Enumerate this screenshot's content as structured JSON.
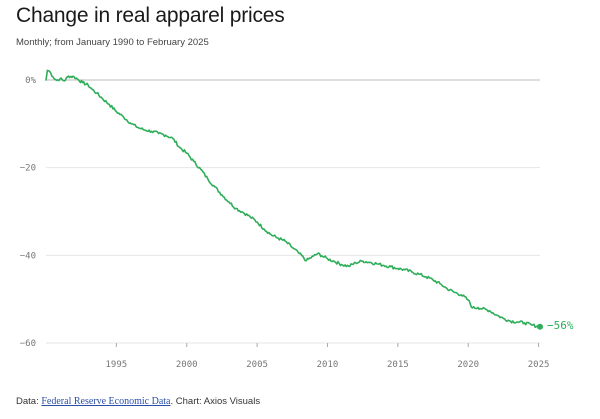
{
  "title": "Change in real apparel prices",
  "subtitle": "Monthly; from January 1990 to February 2025",
  "footer": {
    "prefix": "Data: ",
    "source_link": "Federal Reserve Economic Data",
    "suffix": ". Chart: Axios Visuals"
  },
  "colors": {
    "line": "#2fae5a",
    "grid": "#e6e6e6",
    "zero_line": "#bbbbbb"
  },
  "chart_data": {
    "type": "line",
    "title": "Change in real apparel prices",
    "subtitle": "Monthly; from January 1990 to February 2025",
    "xlim": [
      1990,
      2025.1
    ],
    "ylim": [
      -60,
      0
    ],
    "x_ticks": [
      1995,
      2000,
      2005,
      2010,
      2015,
      2020,
      2025
    ],
    "x_tick_labels": [
      "1995",
      "2000",
      "2005",
      "2010",
      "2015",
      "2020",
      "2025"
    ],
    "y_ticks": [
      0,
      -20,
      -40,
      -60
    ],
    "y_tick_labels": [
      "0%",
      "−20",
      "−40",
      "−60"
    ],
    "grid": true,
    "end_label": "−56%",
    "series": [
      {
        "values": [
          [
            1990.0,
            0.0
          ],
          [
            1990.1,
            2.2
          ],
          [
            1990.25,
            2.0
          ],
          [
            1990.5,
            0.7
          ],
          [
            1990.75,
            -0.1
          ],
          [
            1991.0,
            0.3
          ],
          [
            1991.3,
            -0.2
          ],
          [
            1991.6,
            0.9
          ],
          [
            1992.0,
            0.7
          ],
          [
            1992.3,
            0.1
          ],
          [
            1992.6,
            -0.6
          ],
          [
            1993.0,
            -1.2
          ],
          [
            1993.3,
            -2.2
          ],
          [
            1993.6,
            -3.0
          ],
          [
            1994.0,
            -4.2
          ],
          [
            1994.5,
            -5.6
          ],
          [
            1995.0,
            -7.2
          ],
          [
            1995.5,
            -8.4
          ],
          [
            1996.0,
            -9.8
          ],
          [
            1996.5,
            -10.8
          ],
          [
            1997.0,
            -11.4
          ],
          [
            1997.5,
            -11.7
          ],
          [
            1998.0,
            -12.2
          ],
          [
            1998.5,
            -12.6
          ],
          [
            1999.0,
            -13.3
          ],
          [
            1999.5,
            -15.4
          ],
          [
            2000.0,
            -16.7
          ],
          [
            2000.5,
            -18.6
          ],
          [
            2001.0,
            -20.4
          ],
          [
            2001.5,
            -22.6
          ],
          [
            2002.0,
            -24.4
          ],
          [
            2002.5,
            -26.2
          ],
          [
            2003.0,
            -27.8
          ],
          [
            2003.5,
            -29.3
          ],
          [
            2004.0,
            -30.2
          ],
          [
            2004.5,
            -31.2
          ],
          [
            2005.0,
            -32.4
          ],
          [
            2005.5,
            -34.0
          ],
          [
            2006.0,
            -35.3
          ],
          [
            2006.5,
            -36.1
          ],
          [
            2007.0,
            -36.8
          ],
          [
            2007.5,
            -38.2
          ],
          [
            2008.0,
            -39.6
          ],
          [
            2008.5,
            -41.2
          ],
          [
            2009.0,
            -40.2
          ],
          [
            2009.3,
            -39.6
          ],
          [
            2009.6,
            -40.1
          ],
          [
            2010.0,
            -40.8
          ],
          [
            2010.5,
            -41.4
          ],
          [
            2011.0,
            -42.1
          ],
          [
            2011.5,
            -42.5
          ],
          [
            2012.0,
            -41.7
          ],
          [
            2012.5,
            -41.3
          ],
          [
            2013.0,
            -41.6
          ],
          [
            2013.5,
            -41.9
          ],
          [
            2014.0,
            -42.3
          ],
          [
            2014.5,
            -42.6
          ],
          [
            2015.0,
            -43.0
          ],
          [
            2015.5,
            -43.3
          ],
          [
            2016.0,
            -43.8
          ],
          [
            2016.5,
            -44.3
          ],
          [
            2017.0,
            -44.9
          ],
          [
            2017.5,
            -45.6
          ],
          [
            2018.0,
            -46.5
          ],
          [
            2018.5,
            -47.6
          ],
          [
            2019.0,
            -48.4
          ],
          [
            2019.5,
            -49.0
          ],
          [
            2020.0,
            -50.2
          ],
          [
            2020.3,
            -52.0
          ],
          [
            2020.7,
            -51.9
          ],
          [
            2021.0,
            -52.2
          ],
          [
            2021.5,
            -52.6
          ],
          [
            2022.0,
            -53.6
          ],
          [
            2022.5,
            -54.4
          ],
          [
            2023.0,
            -55.0
          ],
          [
            2023.5,
            -55.2
          ],
          [
            2024.0,
            -55.4
          ],
          [
            2024.5,
            -55.9
          ],
          [
            2025.1,
            -56.3
          ]
        ]
      }
    ]
  }
}
